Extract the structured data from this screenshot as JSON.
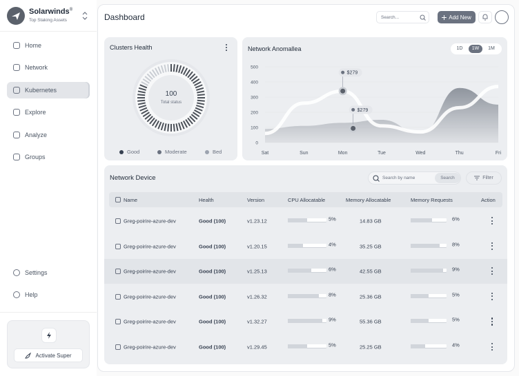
{
  "sidebar": {
    "brand": "Solarwinds",
    "brand_mark": "®",
    "tagline": "Top Staking Assets",
    "nav": [
      "Home",
      "Network",
      "Kubernetes",
      "Explore",
      "Analyze",
      "Groups"
    ],
    "active_nav": "Kubernetes",
    "footer_nav": [
      "Settings",
      "Help"
    ],
    "promo_button": "Activate Super"
  },
  "header": {
    "title": "Dashboard",
    "search_placeholder": "Search...",
    "add_button": "Add New"
  },
  "clusters_health": {
    "title": "Clusters Health",
    "value": 100,
    "label": "Total status",
    "legend": [
      "Good",
      "Moderate",
      "Bed"
    ]
  },
  "anomaly_chart": {
    "type": "area",
    "title": "Network Anomallea",
    "ranges": [
      "1D",
      "1W",
      "1M"
    ],
    "active_range": "1W",
    "categories": [
      "Sat",
      "Sun",
      "Mon",
      "Tue",
      "Wed",
      "Thu",
      "Fri"
    ],
    "series": [
      {
        "color": "#8f959e",
        "values": [
          90,
          110,
          130,
          150,
          60,
          360,
          250
        ]
      },
      {
        "color": "#ffffff",
        "values": [
          60,
          260,
          340,
          110,
          70,
          230,
          370
        ]
      }
    ],
    "ylim": [
      0,
      500
    ],
    "yticks": [
      0,
      100,
      200,
      300,
      400,
      500
    ],
    "annotations": [
      "$279",
      "$279"
    ]
  },
  "network_device": {
    "title": "Network Device",
    "search_placeholder": "Search by name",
    "search_button": "Search",
    "filter_button": "Filter",
    "columns": [
      "Name",
      "Health",
      "Version",
      "CPU Allocatable",
      "Memory Allocatable",
      "Memory Requests",
      "Action"
    ],
    "rows": [
      [
        "Greg-poirire-azure-dev",
        "Good (100)",
        "v1.23.12",
        "5%",
        "14.83 GB",
        "6%"
      ],
      [
        "Greg-poirire-azure-dev",
        "Good (100)",
        "v1.20.15",
        "4%",
        "35.25 GB",
        "8%"
      ],
      [
        "Greg-poirire-azure-dev",
        "Good (100)",
        "v1.25.13",
        "6%",
        "42.55 GB",
        "9%"
      ],
      [
        "Greg-poirire-azure-dev",
        "Good (100)",
        "v1.26.32",
        "8%",
        "25.36 GB",
        "5%"
      ],
      [
        "Greg-poirire-azure-dev",
        "Good (100)",
        "v1.32.27",
        "9%",
        "55.36 GB",
        "5%"
      ],
      [
        "Greg-poirire-azure-dev",
        "Good (100)",
        "v1.29.45",
        "5%",
        "25.25 GB",
        "4%"
      ]
    ]
  }
}
